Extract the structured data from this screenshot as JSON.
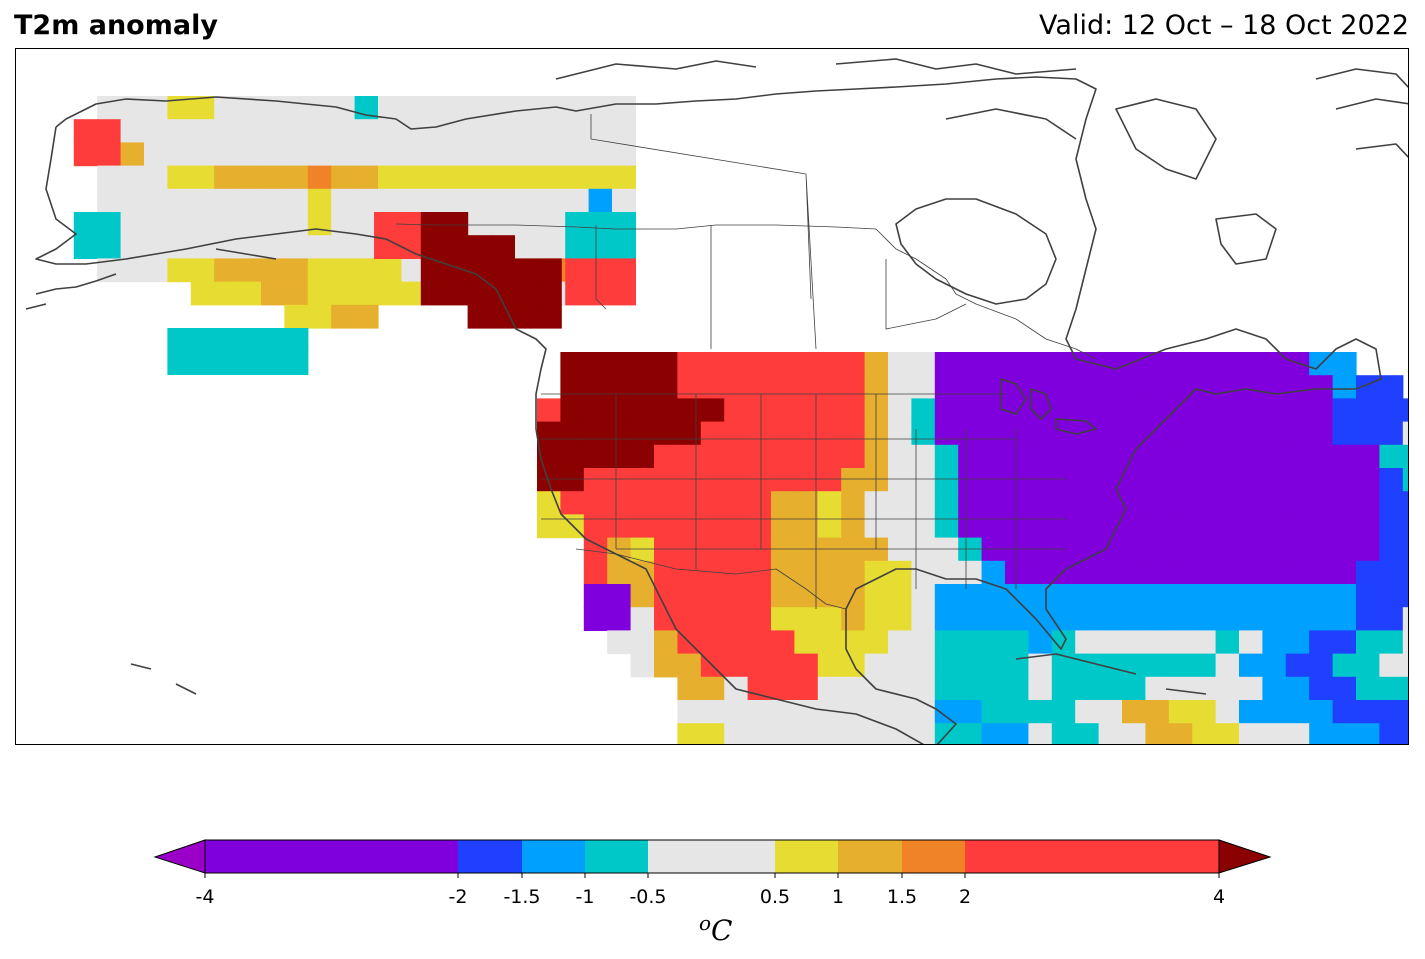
{
  "header": {
    "title": "T2m anomaly",
    "valid": "Valid: 12 Oct – 18 Oct 2022"
  },
  "colorbar": {
    "unit_sup": "o",
    "unit_main": "C",
    "extend": "both",
    "min_extend_color": "#9b00c8",
    "max_extend_color": "#8b0000",
    "bins": [
      {
        "from": -4,
        "to": -2,
        "color": "#8000dd"
      },
      {
        "from": -2,
        "to": -1.5,
        "color": "#2040ff"
      },
      {
        "from": -1.5,
        "to": -1,
        "color": "#00a0ff"
      },
      {
        "from": -1,
        "to": -0.5,
        "color": "#00c8c8"
      },
      {
        "from": -0.5,
        "to": 0.5,
        "color": "#e6e6e6"
      },
      {
        "from": 0.5,
        "to": 1,
        "color": "#e6dc32"
      },
      {
        "from": 1,
        "to": 1.5,
        "color": "#e6af2d"
      },
      {
        "from": 1.5,
        "to": 2,
        "color": "#f08228"
      },
      {
        "from": 2,
        "to": 4,
        "color": "#ff3c3c"
      }
    ],
    "tick_labels": [
      "-4",
      "-2",
      "-1.5",
      "-1",
      "-0.5",
      "0.5",
      "1",
      "1.5",
      "2",
      "4"
    ]
  },
  "map": {
    "land_outline_color": "#404040",
    "palette_keys": {
      "P": "#9b00c8",
      "V": "#8000dd",
      "B": "#2040ff",
      "L": "#00a0ff",
      "C": "#00c8c8",
      "G": "#e6e6e6",
      "Y": "#e6dc32",
      "O": "#e6af2d",
      "o": "#f08228",
      "R": "#ff3c3c",
      "D": "#8b0000"
    },
    "regions": [
      {
        "name": "alaska",
        "rows": [
          "...GGGYYGGGGGGCGGGGGGGGGGG",
          "..RRGGGGGGGGGGGGGGGGGGGGGG",
          "..RROGGGGGGGGGGGGGGGGGGGGG",
          "...GGGYYOOOOoOOYYYYYYYYYYY",
          "...GGGGGGGGGYGGGGGGGGGGGLG",
          "..CCGGGGGGGGYGGGGGGGGGGCCC",
          "..CCGGGGGGGGGGGGGGGGGGGCCC",
          "...GGGYYOOOOYYYYGGGGYYoRRR",
          ".......YYYOOYYYYYGGGGGGRRR",
          "...........YYOO...........",
          "......CCCCCC..............",
          "......CCCCCC.............."
        ]
      },
      {
        "name": "panhandle",
        "rows": [
          "RRDD....",
          "RRDDDD..",
          "..DDDDDD",
          "..DDDDDD",
          "....DDDD"
        ]
      },
      {
        "name": "conus",
        "rows": [
          ".DDDDDRRRRRRRROGGVVVVVVVVVVVVVVVVLL..........",
          ".DDDDDRRRRRRRROGGVVVVVVVVVVVVVVVVVLBB.........",
          "RDDDDDDDRRRRRROGCVVVVVVVVVVVVVVVVVBBBB........",
          "DDDDDDDRRRRRRROGCVVVVVVVVVVVVVVVVVBBBGGGYYYYYRRDD",
          "DDDDDRRRRRRRRROGGCVVVVVVVVVVVVVVVVVVCCCGGYYRRRDD",
          "DDRRRRRRRRRRROOGGCVVVVVVVVVVVVVVVVVVBCCGGGGOORR.",
          "YRRRRRRRRROOYOGGGCVVVVVVVVVVVVVVVVVVBBCGGGG.....",
          "YYRRRRRRRROOYOGGGCVVVVVVVVVVVVVVVVVVBBBGG.......",
          "..ROYRRRRROOOOOGGGCVVVVVVVVVVVVVVVVVBBBGG.......",
          "..ROORRRRROOOOYYGGGLVVVVVVVVVVVVVVVBBBBGG.......",
          "..VVORRRRROOOOYYGLLLLLLLLLLLLLLLLLLBBBBGG.......",
          "..VVGRRRRRYYYOYYGLLLLLLLLLLLLLLLLLLBBGGGG.......",
          "...GGORRRRRYYYYGGCCCCLCGGGGGGCGLLBBCCGGGGG......",
          "....GOORRRRRYYGGGCCCCGCCCCCCCGLLBBCCGGGGG.......",
          "......OOGRRRGGGGGCCCCGCCCCGGGGGLLBBCCCGGG.......",
          "......GGGGGGGGGGGLLCCCCGGOOYYGLLLLBBBBCCCGG.....",
          "......YYGGGGGGGGGCCLLGCCGGOOYYGGGLLLBBBCCCG.....",
          "...........GGGGGGGCCCCGOORRYGGCCCGGLCCGGG.......",
          "........................OORRYCC..CCCLLCCGGG.....",
          "........................OOOOOO.....CCGGCGGG.....",
          "..........................OOOO.........YYYY.....",
          "..........................OOOO.........YYYY.....",
          "...........................OO..........YYYY.....",
          "...........................OO.........YYYY......"
        ]
      }
    ]
  }
}
